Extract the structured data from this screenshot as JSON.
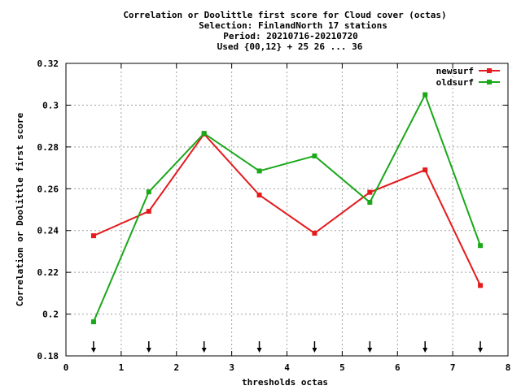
{
  "chart_data": {
    "type": "line",
    "title_lines": [
      "Correlation or Doolittle first score  for Cloud cover (octas)",
      "Selection: FinlandNorth     17 stations",
      "Period: 20210716-20210720",
      "Used {00,12} + 25 26 ... 36"
    ],
    "xlabel": "thresholds octas",
    "ylabel": "Correlation or Doolittle first score",
    "xlim": [
      0,
      8
    ],
    "ylim": [
      0.18,
      0.32
    ],
    "xticks": [
      "0",
      "1",
      "2",
      "3",
      "4",
      "5",
      "6",
      "7",
      "8"
    ],
    "yticks": [
      "0.18",
      "0.2",
      "0.22",
      "0.24",
      "0.26",
      "0.28",
      "0.3",
      "0.32"
    ],
    "x": [
      0.5,
      1.5,
      2.5,
      3.5,
      4.5,
      5.5,
      6.5,
      7.5
    ],
    "series": [
      {
        "name": "newsurf",
        "color": "#e41a1c",
        "values": [
          0.2375,
          0.2492,
          0.2862,
          0.257,
          0.2387,
          0.2583,
          0.269,
          0.2137
        ]
      },
      {
        "name": "oldsurf",
        "color": "#1aa81a",
        "values": [
          0.1963,
          0.2585,
          0.2865,
          0.2685,
          0.2757,
          0.2535,
          0.305,
          0.2328
        ]
      }
    ],
    "arrows_at_x": [
      0.5,
      1.5,
      2.5,
      3.5,
      4.5,
      5.5,
      6.5,
      7.5
    ],
    "grid": true,
    "legend_position": "top-right"
  }
}
